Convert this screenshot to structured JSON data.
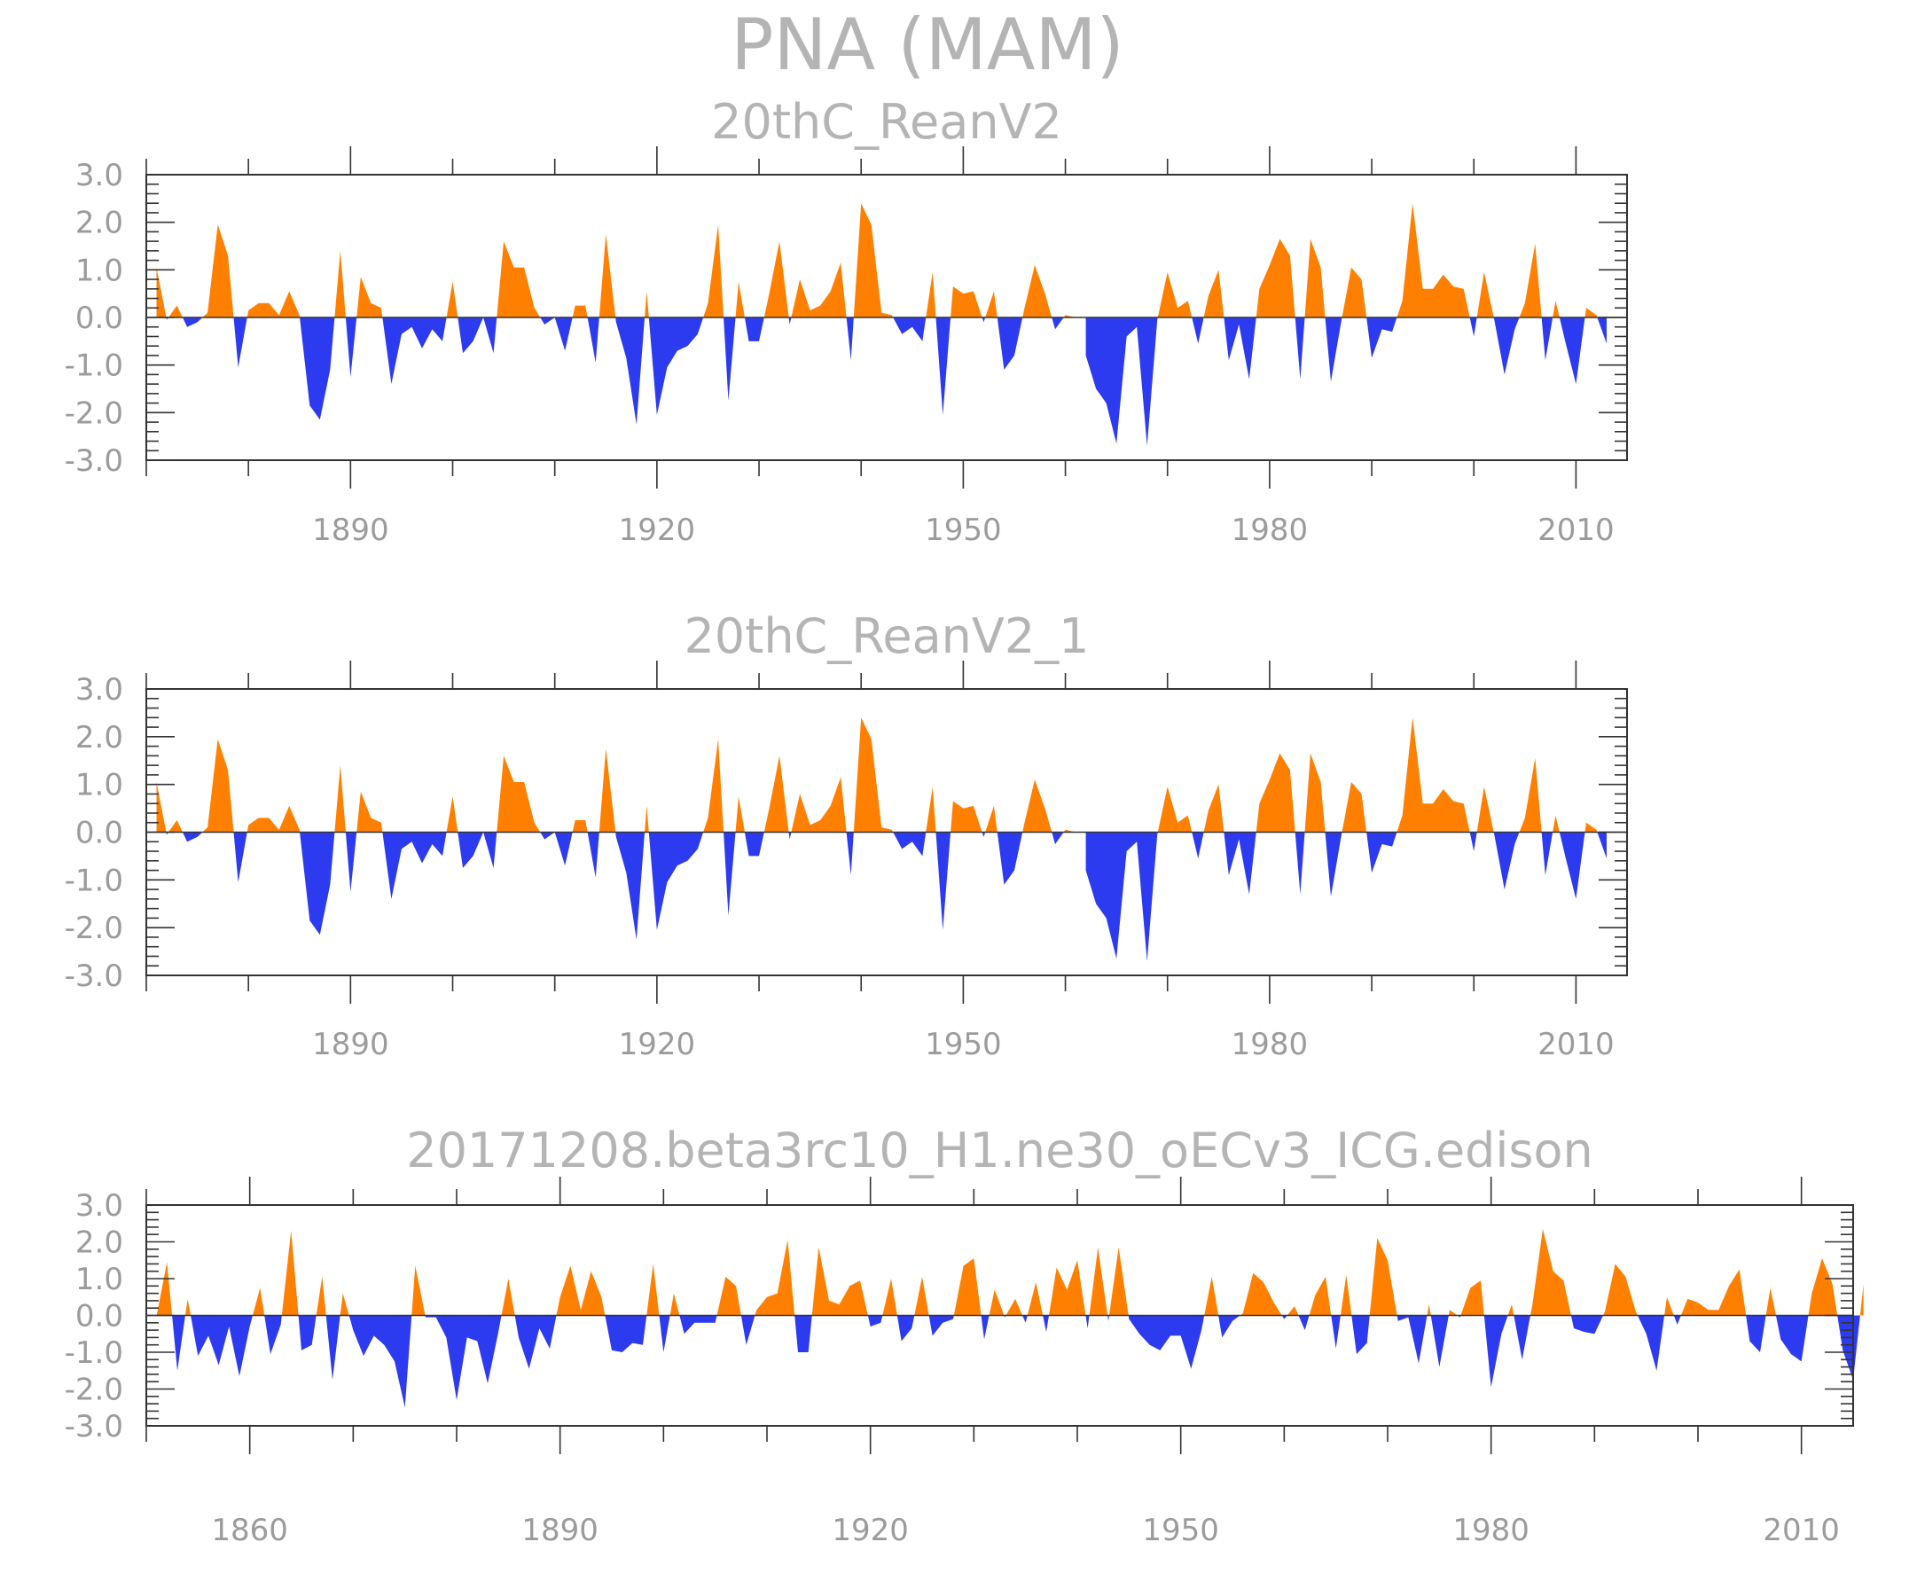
{
  "title": "PNA (MAM)",
  "colors": {
    "positive": "#ff8000",
    "negative": "#2d3bf0",
    "axis": "#333333",
    "label": "#9b9b9b",
    "title": "#b4b4b4"
  },
  "chart_data": [
    {
      "type": "area",
      "title": "20thC_ReanV2",
      "ylim": [
        -3,
        3
      ],
      "yticks": [
        -3,
        -2,
        -1,
        0,
        1,
        2,
        3
      ],
      "ytick_labels": [
        "-3.0",
        "-2.0",
        "-1.0",
        "0.0",
        "1.0",
        "2.0",
        "3.0"
      ],
      "xlim": [
        1870,
        2015
      ],
      "xticks": [
        1890,
        1920,
        1950,
        1980,
        2010
      ],
      "xtick_labels": [
        "1890",
        "1920",
        "1950",
        "1980",
        "2010"
      ],
      "x_start": 1871,
      "values": [
        1.05,
        -0.05,
        0.25,
        -0.2,
        -0.1,
        0.1,
        1.95,
        1.3,
        -1.05,
        0.15,
        0.3,
        0.3,
        0.05,
        0.55,
        0.05,
        -1.85,
        -2.15,
        -1.1,
        1.4,
        -1.25,
        0.85,
        0.3,
        0.2,
        -1.4,
        -0.35,
        -0.2,
        -0.65,
        -0.25,
        -0.5,
        0.75,
        -0.75,
        -0.5,
        0.0,
        -0.75,
        1.6,
        1.05,
        1.05,
        0.2,
        -0.15,
        0.0,
        -0.7,
        0.25,
        0.25,
        -0.95,
        1.75,
        -0.1,
        -0.85,
        -2.25,
        0.55,
        -2.05,
        -1.05,
        -0.7,
        -0.6,
        -0.35,
        0.3,
        1.95,
        -1.75,
        0.75,
        -0.5,
        -0.5,
        0.5,
        1.6,
        -0.15,
        0.8,
        0.15,
        0.25,
        0.55,
        1.15,
        -0.9,
        2.4,
        1.95,
        0.1,
        0.05,
        -0.35,
        -0.2,
        -0.5,
        0.95,
        -2.05,
        0.65,
        0.5,
        0.55,
        -0.1,
        0.55,
        -1.1,
        -0.8,
        0.2,
        1.1,
        0.5,
        -0.25,
        0.05,
        0.0,
        -0.8,
        -1.5,
        -1.8,
        -2.65,
        -0.4,
        -0.2,
        -2.7,
        -0.05,
        0.95,
        0.2,
        0.35,
        -0.55,
        0.45,
        1.0,
        -0.9,
        -0.15,
        -1.3,
        0.6,
        1.1,
        1.65,
        1.3,
        -1.3,
        1.65,
        1.05,
        -1.35,
        -0.1,
        1.05,
        0.8,
        -0.85,
        -0.25,
        -0.3,
        0.35,
        2.4,
        0.6,
        0.6,
        0.9,
        0.65,
        0.6,
        -0.4,
        0.95,
        -0.05,
        -1.2,
        -0.25,
        0.3,
        1.55,
        -0.9,
        0.35,
        -0.55,
        -1.4,
        0.2,
        0.05,
        -0.55
      ]
    },
    {
      "type": "area",
      "title": "20thC_ReanV2_1",
      "ylim": [
        -3,
        3
      ],
      "yticks": [
        -3,
        -2,
        -1,
        0,
        1,
        2,
        3
      ],
      "ytick_labels": [
        "-3.0",
        "-2.0",
        "-1.0",
        "0.0",
        "1.0",
        "2.0",
        "3.0"
      ],
      "xlim": [
        1870,
        2015
      ],
      "xticks": [
        1890,
        1920,
        1950,
        1980,
        2010
      ],
      "xtick_labels": [
        "1890",
        "1920",
        "1950",
        "1980",
        "2010"
      ],
      "x_start": 1871,
      "values": [
        1.05,
        -0.05,
        0.25,
        -0.2,
        -0.1,
        0.1,
        1.95,
        1.3,
        -1.05,
        0.15,
        0.3,
        0.3,
        0.05,
        0.55,
        0.05,
        -1.85,
        -2.15,
        -1.1,
        1.4,
        -1.25,
        0.85,
        0.3,
        0.2,
        -1.4,
        -0.35,
        -0.2,
        -0.65,
        -0.25,
        -0.5,
        0.75,
        -0.75,
        -0.5,
        0.0,
        -0.75,
        1.6,
        1.05,
        1.05,
        0.2,
        -0.15,
        0.0,
        -0.7,
        0.25,
        0.25,
        -0.95,
        1.75,
        -0.1,
        -0.85,
        -2.25,
        0.55,
        -2.05,
        -1.05,
        -0.7,
        -0.6,
        -0.35,
        0.3,
        1.95,
        -1.75,
        0.75,
        -0.5,
        -0.5,
        0.5,
        1.6,
        -0.15,
        0.8,
        0.15,
        0.25,
        0.55,
        1.15,
        -0.9,
        2.4,
        1.95,
        0.1,
        0.05,
        -0.35,
        -0.2,
        -0.5,
        0.95,
        -2.05,
        0.65,
        0.5,
        0.55,
        -0.1,
        0.55,
        -1.1,
        -0.8,
        0.2,
        1.1,
        0.5,
        -0.25,
        0.05,
        0.0,
        -0.8,
        -1.5,
        -1.8,
        -2.65,
        -0.4,
        -0.2,
        -2.7,
        -0.05,
        0.95,
        0.2,
        0.35,
        -0.55,
        0.45,
        1.0,
        -0.9,
        -0.15,
        -1.3,
        0.6,
        1.1,
        1.65,
        1.3,
        -1.3,
        1.65,
        1.05,
        -1.35,
        -0.1,
        1.05,
        0.8,
        -0.85,
        -0.25,
        -0.3,
        0.35,
        2.4,
        0.6,
        0.6,
        0.9,
        0.65,
        0.6,
        -0.4,
        0.95,
        -0.05,
        -1.2,
        -0.25,
        0.3,
        1.55,
        -0.9,
        0.35,
        -0.55,
        -1.4,
        0.2,
        0.05,
        -0.55
      ]
    },
    {
      "type": "area",
      "title": "20171208.beta3rc10_H1.ne30_oECv3_ICG.edison",
      "ylim": [
        -3,
        3
      ],
      "yticks": [
        -3,
        -2,
        -1,
        0,
        1,
        2,
        3
      ],
      "ytick_labels": [
        "-3.0",
        "-2.0",
        "-1.0",
        "0.0",
        "1.0",
        "2.0",
        "3.0"
      ],
      "xlim": [
        1850,
        2015
      ],
      "xticks": [
        1860,
        1890,
        1920,
        1950,
        1980,
        2010
      ],
      "xtick_labels": [
        "1860",
        "1890",
        "1920",
        "1950",
        "1980",
        "2010"
      ],
      "x_start": 1851,
      "values": [
        0.0,
        1.45,
        -1.5,
        0.45,
        -1.1,
        -0.55,
        -1.35,
        -0.3,
        -1.65,
        -0.3,
        0.75,
        -1.05,
        -0.25,
        2.3,
        -0.95,
        -0.8,
        1.05,
        -1.75,
        0.6,
        -0.4,
        -1.1,
        -0.55,
        -0.8,
        -1.25,
        -2.5,
        1.35,
        -0.05,
        -0.05,
        -0.6,
        -2.3,
        -0.6,
        -0.7,
        -1.85,
        -0.5,
        1.0,
        -0.6,
        -1.45,
        -0.35,
        -0.9,
        0.5,
        1.35,
        0.15,
        1.2,
        0.5,
        -0.95,
        -1.0,
        -0.75,
        -0.8,
        1.4,
        -1.0,
        0.6,
        -0.5,
        -0.2,
        -0.2,
        -0.2,
        1.05,
        0.8,
        -0.8,
        0.15,
        0.5,
        0.6,
        2.05,
        -1.0,
        -1.0,
        1.85,
        0.4,
        0.3,
        0.8,
        0.95,
        -0.3,
        -0.2,
        1.0,
        -0.7,
        -0.35,
        1.05,
        -0.55,
        -0.2,
        -0.1,
        1.35,
        1.55,
        -0.65,
        0.7,
        -0.05,
        0.45,
        -0.2,
        0.9,
        -0.45,
        1.3,
        0.7,
        1.5,
        -0.35,
        1.85,
        -0.15,
        1.85,
        -0.1,
        -0.5,
        -0.8,
        -0.95,
        -0.55,
        -0.55,
        -1.45,
        -0.4,
        1.05,
        -0.6,
        -0.15,
        0.05,
        1.15,
        0.9,
        0.35,
        -0.1,
        0.25,
        -0.4,
        0.55,
        1.05,
        -0.9,
        1.1,
        -1.05,
        -0.75,
        2.1,
        1.5,
        -0.15,
        -0.05,
        -1.3,
        0.3,
        -1.4,
        0.15,
        -0.05,
        0.75,
        0.95,
        -1.95,
        -0.5,
        0.3,
        -1.2,
        0.3,
        2.35,
        1.2,
        0.95,
        -0.35,
        -0.45,
        -0.5,
        0.1,
        1.4,
        1.05,
        0.1,
        -0.5,
        -1.5,
        0.5,
        -0.25,
        0.45,
        0.35,
        0.15,
        0.15,
        0.8,
        1.25,
        -0.7,
        -1.0,
        0.75,
        -0.65,
        -1.05,
        -1.25,
        0.6,
        1.55,
        0.85,
        -0.95,
        -1.75,
        0.85
      ]
    }
  ]
}
